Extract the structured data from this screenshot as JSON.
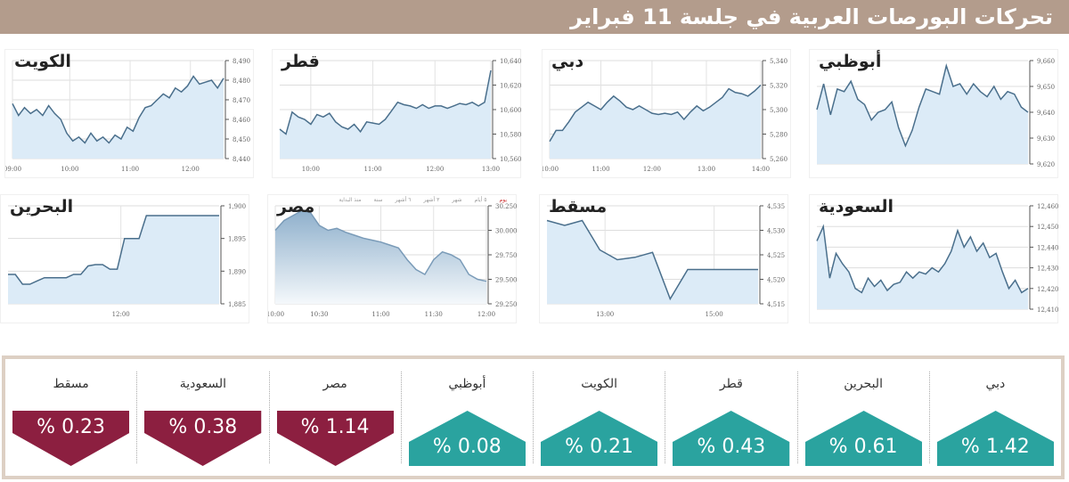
{
  "header": {
    "title": "تحركات البورصات العربية في جلسة 11 فبراير"
  },
  "colors": {
    "up": "#2aa39f",
    "down": "#8c1f40",
    "line": "#4a6f8c",
    "fill": "#dcebf7",
    "header": "#b39c8c"
  },
  "egypt_tabs": [
    "يوم",
    "٥ أيام",
    "شهر",
    "٣ أشهر",
    "٦ أشهر",
    "سنة",
    "منذ البداية"
  ],
  "chart_data": [
    {
      "id": "kuwait",
      "type": "area",
      "title": "الكويت",
      "ylim": [
        8440,
        8490
      ],
      "yticks": [
        "8,440",
        "8,450",
        "8,460",
        "8,470",
        "8,480",
        "8,490"
      ],
      "ytickvals": [
        8440,
        8450,
        8460,
        8470,
        8480,
        8490
      ],
      "xticks": [
        {
          "label": "09:00",
          "at": 0
        },
        {
          "label": "10:00",
          "at": 9.5
        },
        {
          "label": "11:00",
          "at": 19.5
        },
        {
          "label": "12:00",
          "at": 29.5
        }
      ],
      "values": [
        8468,
        8462,
        8466,
        8463,
        8465,
        8462,
        8467,
        8463,
        8460,
        8453,
        8449,
        8451,
        8448,
        8453,
        8449,
        8451,
        8448,
        8452,
        8450,
        8456,
        8454,
        8461,
        8466,
        8467,
        8470,
        8473,
        8471,
        8476,
        8474,
        8477,
        8482,
        8478,
        8479,
        8480,
        8476,
        8481
      ]
    },
    {
      "id": "qatar",
      "type": "area",
      "title": "قطر",
      "ylim": [
        10560,
        10640
      ],
      "yticks": [
        "10,560",
        "10,580",
        "10,600",
        "10,620",
        "10,640"
      ],
      "ytickvals": [
        10560,
        10580,
        10600,
        10620,
        10640
      ],
      "xticks": [
        {
          "label": "10:00",
          "at": 5
        },
        {
          "label": "11:00",
          "at": 15
        },
        {
          "label": "12:00",
          "at": 25
        },
        {
          "label": "13:00",
          "at": 34
        }
      ],
      "values": [
        10584,
        10580,
        10598,
        10594,
        10592,
        10588,
        10596,
        10594,
        10597,
        10590,
        10586,
        10584,
        10588,
        10582,
        10590,
        10589,
        10588,
        10592,
        10599,
        10606,
        10604,
        10603,
        10601,
        10604,
        10601,
        10603,
        10603,
        10601,
        10603,
        10605,
        10604,
        10606,
        10603,
        10606,
        10632
      ]
    },
    {
      "id": "dubai",
      "type": "area",
      "title": "دبي",
      "ylim": [
        5260,
        5340
      ],
      "yticks": [
        "5,260",
        "5,280",
        "5,300",
        "5,320",
        "5,340"
      ],
      "ytickvals": [
        5260,
        5280,
        5300,
        5320,
        5340
      ],
      "xticks": [
        {
          "label": "10:00",
          "at": 0
        },
        {
          "label": "11:00",
          "at": 8
        },
        {
          "label": "12:00",
          "at": 16
        },
        {
          "label": "13:00",
          "at": 24.5
        },
        {
          "label": "14:00",
          "at": 33
        }
      ],
      "values": [
        5274,
        5283,
        5283,
        5290,
        5298,
        5302,
        5306,
        5303,
        5300,
        5306,
        5311,
        5307,
        5302,
        5300,
        5303,
        5300,
        5297,
        5296,
        5297,
        5296,
        5298,
        5292,
        5298,
        5303,
        5299,
        5302,
        5306,
        5310,
        5317,
        5314,
        5313,
        5311,
        5315,
        5320
      ]
    },
    {
      "id": "abudhabi",
      "type": "area",
      "title": "أبوظبي",
      "ylim": [
        9620,
        9660
      ],
      "yticks": [
        "9,620",
        "9,630",
        "9,640",
        "9,650",
        "9,660"
      ],
      "ytickvals": [
        9620,
        9630,
        9640,
        9650,
        9660
      ],
      "xticks": [],
      "values": [
        9641,
        9651,
        9639,
        9649,
        9648,
        9652,
        9645,
        9643,
        9637,
        9640,
        9641,
        9644,
        9634,
        9627,
        9633,
        9642,
        9649,
        9648,
        9647,
        9658,
        9650,
        9651,
        9647,
        9651,
        9648,
        9646,
        9650,
        9645,
        9648,
        9647,
        9642,
        9640
      ]
    },
    {
      "id": "bahrain",
      "type": "area",
      "title": "البحرين",
      "ylim": [
        1885,
        1900
      ],
      "yticks": [
        "1,885",
        "1,890",
        "1,895",
        "1,900"
      ],
      "ytickvals": [
        1885,
        1890,
        1895,
        1900
      ],
      "xticks": [
        {
          "label": "12:00",
          "at": 15.5
        }
      ],
      "values": [
        1889.5,
        1889.5,
        1888,
        1888,
        1888.5,
        1889,
        1889,
        1889,
        1889,
        1889.5,
        1889.5,
        1890.8,
        1891,
        1891,
        1890.3,
        1890.3,
        1895,
        1895,
        1895,
        1898.5,
        1898.5,
        1898.5,
        1898.5,
        1898.5,
        1898.5,
        1898.5,
        1898.5,
        1898.5,
        1898.5,
        1898.5
      ]
    },
    {
      "id": "egypt",
      "type": "area",
      "title": "مصر",
      "ylim": [
        29250,
        30250
      ],
      "yticks": [
        "29.250",
        "29.500",
        "29.750",
        "30.000",
        "30.250"
      ],
      "ytickvals": [
        29250,
        29500,
        29750,
        30000,
        30250
      ],
      "xticks": [
        {
          "label": "10:00",
          "at": 0
        },
        {
          "label": "10:30",
          "at": 5
        },
        {
          "label": "11:00",
          "at": 12
        },
        {
          "label": "11:30",
          "at": 18
        },
        {
          "label": "12:00",
          "at": 24
        }
      ],
      "values": [
        30000,
        30100,
        30150,
        30200,
        30180,
        30050,
        30000,
        30020,
        29980,
        29950,
        29920,
        29900,
        29880,
        29850,
        29820,
        29700,
        29600,
        29550,
        29700,
        29780,
        29750,
        29700,
        29550,
        29500,
        29480
      ]
    },
    {
      "id": "muscat",
      "type": "area",
      "title": "مسقط",
      "ylim": [
        4515,
        4535
      ],
      "yticks": [
        "4,515",
        "4,520",
        "4,525",
        "4,530",
        "4,535"
      ],
      "ytickvals": [
        4515,
        4520,
        4525,
        4530,
        4535
      ],
      "xticks": [
        {
          "label": "13:00",
          "at": 3.3
        },
        {
          "label": "15:00",
          "at": 9.5
        }
      ],
      "values": [
        4532,
        4531,
        4532,
        4526,
        4524,
        4524.5,
        4525.5,
        4516,
        4522,
        4522,
        4522,
        4522,
        4522
      ]
    },
    {
      "id": "saudi",
      "type": "area",
      "title": "السعودية",
      "ylim": [
        12410,
        12460
      ],
      "yticks": [
        "12,410",
        "12,420",
        "12,430",
        "12,440",
        "12,450",
        "12,460"
      ],
      "ytickvals": [
        12410,
        12420,
        12430,
        12440,
        12450,
        12460
      ],
      "xticks": [],
      "values": [
        12443,
        12450,
        12425,
        12437,
        12432,
        12428,
        12420,
        12418,
        12425,
        12421,
        12424,
        12419,
        12422,
        12423,
        12428,
        12425,
        12428,
        12427,
        12430,
        12428,
        12432,
        12438,
        12448,
        12440,
        12445,
        12438,
        12442,
        12435,
        12437,
        12428,
        12420,
        12424,
        12418,
        12420
      ]
    }
  ],
  "changes": [
    {
      "name": "دبي",
      "value": "% 1.42",
      "dir": "up"
    },
    {
      "name": "البحرين",
      "value": "% 0.61",
      "dir": "up"
    },
    {
      "name": "قطر",
      "value": "% 0.43",
      "dir": "up"
    },
    {
      "name": "الكويت",
      "value": "% 0.21",
      "dir": "up"
    },
    {
      "name": "أبوظبي",
      "value": "% 0.08",
      "dir": "up"
    },
    {
      "name": "مصر",
      "value": "% 1.14",
      "dir": "down"
    },
    {
      "name": "السعودية",
      "value": "% 0.38",
      "dir": "down"
    },
    {
      "name": "مسقط",
      "value": "% 0.23",
      "dir": "down"
    }
  ]
}
